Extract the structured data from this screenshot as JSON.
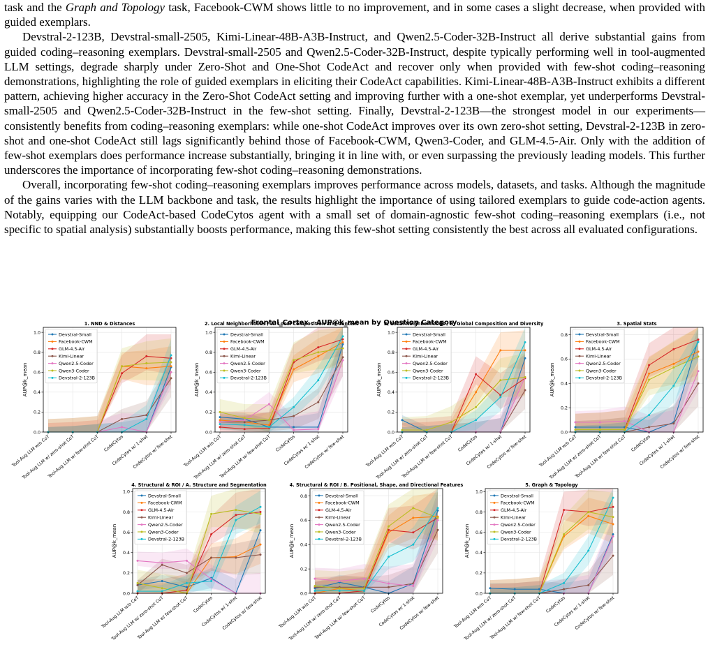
{
  "paragraphs": [
    {
      "indent": false,
      "segments": [
        {
          "t": "task and the "
        },
        {
          "t": "Graph and Topology",
          "i": true
        },
        {
          "t": " task, Facebook-CWM shows little to no improvement, and in some cases a slight decrease, when provided with guided exemplars."
        }
      ]
    },
    {
      "indent": true,
      "segments": [
        {
          "t": "Devstral-2-123B, Devstral-small-2505, Kimi-Linear-48B-A3B-Instruct, and Qwen2.5-Coder-32B-Instruct all derive substantial gains from guided coding–reasoning exemplars. Devstral-small-2505 and Qwen2.5-Coder-32B-Instruct, despite typically performing well in tool-augmented LLM settings, degrade sharply under Zero-Shot and One-Shot CodeAct and recover only when provided with few-shot coding–reasoning demonstrations, highlighting the role of guided exemplars in eliciting their CodeAct capabilities. Kimi-Linear-48B-A3B-Instruct exhibits a different pattern, achieving higher accuracy in the Zero-Shot CodeAct setting and improving further with a one-shot exemplar, yet underperforms Devstral-small-2505 and Qwen2.5-Coder-32B-Instruct in the few-shot setting. Finally, Devstral-2-123B—the strongest model in our experiments—consistently benefits from coding–reasoning exemplars: while one-shot CodeAct improves over its own zero-shot setting, Devstral-2-123B in zero-shot and one-shot CodeAct still lags significantly behind those of Facebook-CWM, Qwen3-Coder, and GLM-4.5-Air. Only with the addition of few-shot exemplars does performance increase substantially, bringing it in line with, or even surpassing the previously leading models. This further underscores the importance of incorporating few-shot coding–reasoning demonstrations."
        }
      ]
    },
    {
      "indent": true,
      "segments": [
        {
          "t": "Overall, incorporating few-shot coding–reasoning exemplars improves performance across models, datasets, and tasks. Although the magnitude of the gains varies with the LLM backbone and task, the results highlight the importance of using tailored exemplars to guide code-action agents. Notably, equipping our CodeAct-based CodeCytos agent with a small set of domain-agnostic few-shot coding–reasoning exemplars (i.e., not specific to spatial analysis) substantially boosts performance, making this few-shot setting consistently the best across all evaluated configurations."
        }
      ]
    }
  ],
  "figure": {
    "title": "Frontal_Cortex - AUP@k_mean by Question Category",
    "ylabel": "AUP@k_mean",
    "categories": [
      "Tool-Aug LLM w/o CoT",
      "Tool-Aug LLM w/ zero-shot CoT",
      "Tool-Aug LLM w/ few-shot CoT",
      "CodeCytos",
      "CodeCytos w/ 1-shot",
      "CodeCytos w/ few-shot"
    ],
    "models": [
      "Devstral-Small",
      "Facebook-CWM",
      "GLM-4.5-Air",
      "Kimi-Linear",
      "Qwen2.5-Coder",
      "Qwen3-Coder",
      "Devstral-2-123B"
    ],
    "colors": [
      "#1f77b4",
      "#ff7f0e",
      "#d62728",
      "#8c564b",
      "#e377c2",
      "#bcbd22",
      "#17becf"
    ]
  },
  "chart_data": [
    {
      "type": "line",
      "title": "1. NND & Distances",
      "ylim": [
        0,
        1.05
      ],
      "yticks": [
        0.0,
        0.2,
        0.4,
        0.6,
        0.8,
        1.0
      ],
      "series": [
        {
          "name": "Devstral-Small",
          "values": [
            0.0,
            0.0,
            0.0,
            0.0,
            0.0,
            0.65
          ]
        },
        {
          "name": "Facebook-CWM",
          "values": [
            0.0,
            0.0,
            0.0,
            0.66,
            0.64,
            0.66
          ]
        },
        {
          "name": "GLM-4.5-Air",
          "values": [
            0.0,
            0.0,
            0.0,
            0.59,
            0.76,
            0.74
          ]
        },
        {
          "name": "Kimi-Linear",
          "values": [
            0.0,
            0.0,
            0.0,
            0.13,
            0.17,
            0.54
          ]
        },
        {
          "name": "Qwen2.5-Coder",
          "values": [
            0.0,
            0.0,
            0.0,
            0.05,
            0.0,
            0.6
          ]
        },
        {
          "name": "Qwen3-Coder",
          "values": [
            0.0,
            0.0,
            0.0,
            0.66,
            0.69,
            0.7
          ]
        },
        {
          "name": "Devstral-2-123B",
          "values": [
            0.0,
            0.0,
            0.0,
            0.0,
            0.13,
            0.77
          ]
        }
      ]
    },
    {
      "type": "line",
      "title": "2. Local Neighborhoods / A. Local Composition and Context",
      "ylim": [
        0,
        1.05
      ],
      "yticks": [
        0.0,
        0.2,
        0.4,
        0.6,
        0.8,
        1.0
      ],
      "series": [
        {
          "name": "Devstral-Small",
          "values": [
            0.15,
            0.13,
            0.05,
            0.05,
            0.05,
            0.88
          ]
        },
        {
          "name": "Facebook-CWM",
          "values": [
            0.12,
            0.1,
            0.07,
            0.63,
            0.76,
            0.9
          ]
        },
        {
          "name": "GLM-4.5-Air",
          "values": [
            0.05,
            0.03,
            0.04,
            0.7,
            0.85,
            0.93
          ]
        },
        {
          "name": "Kimi-Linear",
          "values": [
            0.1,
            0.1,
            0.12,
            0.16,
            0.3,
            0.75
          ]
        },
        {
          "name": "Qwen2.5-Coder",
          "values": [
            0.1,
            0.12,
            0.28,
            0.02,
            0.03,
            0.72
          ]
        },
        {
          "name": "Qwen3-Coder",
          "values": [
            0.2,
            0.14,
            0.12,
            0.72,
            0.8,
            0.84
          ]
        },
        {
          "name": "Devstral-2-123B",
          "values": [
            0.08,
            0.07,
            0.05,
            0.25,
            0.52,
            0.96
          ]
        }
      ]
    },
    {
      "type": "line",
      "title": "2. Local Neighborhoods / B. Global Composition and Diversity",
      "ylim": [
        0,
        1.05
      ],
      "yticks": [
        0.0,
        0.2,
        0.4,
        0.6,
        0.8,
        1.0
      ],
      "series": [
        {
          "name": "Devstral-Small",
          "values": [
            0.12,
            0.0,
            0.0,
            0.0,
            0.0,
            0.74
          ]
        },
        {
          "name": "Facebook-CWM",
          "values": [
            0.0,
            0.0,
            0.0,
            0.4,
            0.82,
            0.82
          ]
        },
        {
          "name": "GLM-4.5-Air",
          "values": [
            0.0,
            0.0,
            0.0,
            0.58,
            0.37,
            0.54
          ]
        },
        {
          "name": "Kimi-Linear",
          "values": [
            0.0,
            0.0,
            0.0,
            0.0,
            0.0,
            0.42
          ]
        },
        {
          "name": "Qwen2.5-Coder",
          "values": [
            0.0,
            0.0,
            0.0,
            0.0,
            0.0,
            0.55
          ]
        },
        {
          "name": "Qwen3-Coder",
          "values": [
            0.02,
            0.02,
            0.1,
            0.25,
            0.52,
            0.55
          ]
        },
        {
          "name": "Devstral-2-123B",
          "values": [
            0.0,
            0.0,
            0.0,
            0.12,
            0.35,
            0.9
          ]
        }
      ]
    },
    {
      "type": "line",
      "title": "3. Spatial Stats",
      "ylim": [
        0,
        0.86
      ],
      "yticks": [
        0.0,
        0.2,
        0.4,
        0.6,
        0.8
      ],
      "series": [
        {
          "name": "Devstral-Small",
          "values": [
            0.04,
            0.04,
            0.04,
            0.0,
            0.08,
            0.76
          ]
        },
        {
          "name": "Facebook-CWM",
          "values": [
            0.0,
            0.0,
            0.0,
            0.48,
            0.56,
            0.66
          ]
        },
        {
          "name": "GLM-4.5-Air",
          "values": [
            0.02,
            0.02,
            0.02,
            0.55,
            0.68,
            0.76
          ]
        },
        {
          "name": "Kimi-Linear",
          "values": [
            0.0,
            0.0,
            0.0,
            0.04,
            0.07,
            0.4
          ]
        },
        {
          "name": "Qwen2.5-Coder",
          "values": [
            0.08,
            0.08,
            0.09,
            0.0,
            0.0,
            0.5
          ]
        },
        {
          "name": "Qwen3-Coder",
          "values": [
            0.02,
            0.02,
            0.02,
            0.43,
            0.53,
            0.62
          ]
        },
        {
          "name": "Devstral-2-123B",
          "values": [
            0.0,
            0.0,
            0.0,
            0.14,
            0.38,
            0.74
          ]
        }
      ]
    },
    {
      "type": "line",
      "title": "4. Structural & ROI / A. Structure and Segmentation",
      "ylim": [
        0,
        1.03
      ],
      "yticks": [
        0.0,
        0.2,
        0.4,
        0.6,
        0.8,
        1.0
      ],
      "series": [
        {
          "name": "Devstral-Small",
          "values": [
            0.08,
            0.12,
            0.06,
            0.15,
            0.0,
            0.62
          ]
        },
        {
          "name": "Facebook-CWM",
          "values": [
            0.0,
            0.0,
            0.0,
            0.35,
            0.36,
            0.48
          ]
        },
        {
          "name": "GLM-4.5-Air",
          "values": [
            0.0,
            0.0,
            0.03,
            0.58,
            0.77,
            0.8
          ]
        },
        {
          "name": "Kimi-Linear",
          "values": [
            0.08,
            0.28,
            0.2,
            0.35,
            0.35,
            0.38
          ]
        },
        {
          "name": "Qwen2.5-Coder",
          "values": [
            0.32,
            0.3,
            0.32,
            0.14,
            0.0,
            0.0
          ]
        },
        {
          "name": "Qwen3-Coder",
          "values": [
            0.1,
            0.05,
            0.0,
            0.78,
            0.82,
            0.78
          ]
        },
        {
          "name": "Devstral-2-123B",
          "values": [
            0.02,
            0.02,
            0.1,
            0.12,
            0.72,
            0.85
          ]
        }
      ]
    },
    {
      "type": "line",
      "title": "4. Structural & ROI / B. Positional, Shape, and Directional Features",
      "ylim": [
        0,
        0.86
      ],
      "yticks": [
        0.0,
        0.2,
        0.4,
        0.6,
        0.8
      ],
      "series": [
        {
          "name": "Devstral-Small",
          "values": [
            0.04,
            0.09,
            0.05,
            0.0,
            0.08,
            0.68
          ]
        },
        {
          "name": "Facebook-CWM",
          "values": [
            0.0,
            0.04,
            0.02,
            0.5,
            0.62,
            0.63
          ]
        },
        {
          "name": "GLM-4.5-Air",
          "values": [
            0.0,
            0.0,
            0.02,
            0.52,
            0.5,
            0.62
          ]
        },
        {
          "name": "Kimi-Linear",
          "values": [
            0.05,
            0.05,
            0.05,
            0.05,
            0.08,
            0.52
          ]
        },
        {
          "name": "Qwen2.5-Coder",
          "values": [
            0.12,
            0.1,
            0.12,
            0.08,
            0.06,
            0.6
          ]
        },
        {
          "name": "Qwen3-Coder",
          "values": [
            0.06,
            0.04,
            0.04,
            0.55,
            0.7,
            0.62
          ]
        },
        {
          "name": "Devstral-2-123B",
          "values": [
            0.02,
            0.02,
            0.02,
            0.3,
            0.4,
            0.7
          ]
        }
      ]
    },
    {
      "type": "line",
      "title": "5. Graph & Topology",
      "ylim": [
        0,
        1.03
      ],
      "yticks": [
        0.0,
        0.2,
        0.4,
        0.6,
        0.8,
        1.0
      ],
      "series": [
        {
          "name": "Devstral-Small",
          "values": [
            0.05,
            0.04,
            0.04,
            0.0,
            0.0,
            0.58
          ]
        },
        {
          "name": "Facebook-CWM",
          "values": [
            0.0,
            0.0,
            0.0,
            0.56,
            0.76,
            0.68
          ]
        },
        {
          "name": "GLM-4.5-Air",
          "values": [
            0.0,
            0.0,
            0.0,
            0.82,
            0.8,
            0.85
          ]
        },
        {
          "name": "Kimi-Linear",
          "values": [
            0.0,
            0.0,
            0.0,
            0.04,
            0.08,
            0.37
          ]
        },
        {
          "name": "Qwen2.5-Coder",
          "values": [
            0.0,
            0.0,
            0.0,
            0.0,
            0.0,
            0.56
          ]
        },
        {
          "name": "Qwen3-Coder",
          "values": [
            0.0,
            0.0,
            0.0,
            0.58,
            0.8,
            0.75
          ]
        },
        {
          "name": "Devstral-2-123B",
          "values": [
            0.0,
            0.0,
            0.0,
            0.1,
            0.42,
            0.94
          ]
        }
      ]
    }
  ]
}
